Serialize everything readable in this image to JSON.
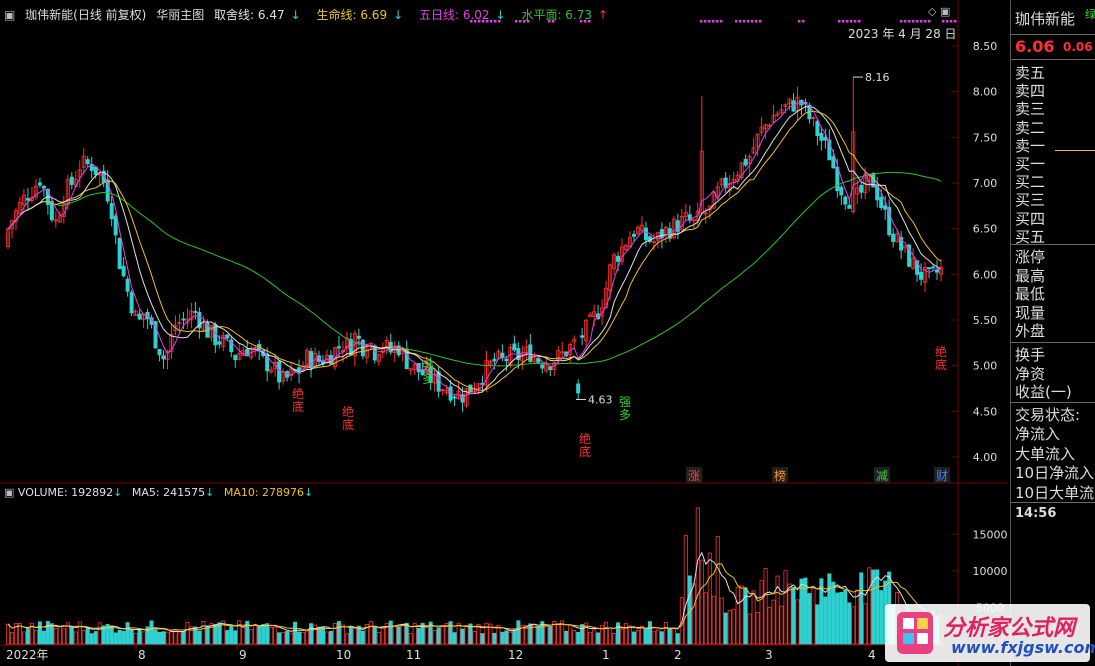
{
  "header": {
    "stock_name": "珈伟新能(日线 前复权)",
    "indicator": "华丽主图",
    "lines": [
      {
        "label": "取舍线: 6.47",
        "arrow": "↓",
        "color": "#e0e0e0"
      },
      {
        "label": "生命线: 6.69",
        "arrow": "↓",
        "color": "#f0c020"
      },
      {
        "label": "五日线: 6.02",
        "arrow": "↓",
        "color": "#e040e0"
      },
      {
        "label": "水平面: 6.73",
        "arrow": "↑",
        "color": "#30c030"
      }
    ],
    "date": "2023 年 4 月 28 日"
  },
  "price_axis": [
    "8.50",
    "8.00",
    "7.50",
    "7.00",
    "6.50",
    "6.00",
    "5.50",
    "5.00",
    "4.50",
    "4.00"
  ],
  "annotations": {
    "high": "8.16",
    "low": "4.63",
    "signals": [
      {
        "text": "绝底",
        "color": "#ff3030"
      },
      {
        "text": "绝底",
        "color": "#ff3030"
      },
      {
        "text": "强多",
        "color": "#30d030"
      },
      {
        "text": "绝底",
        "color": "#ff3030"
      },
      {
        "text": "强多",
        "color": "#30d030"
      },
      {
        "text": "绝底",
        "color": "#ff3030"
      }
    ],
    "tags": [
      {
        "text": "涨",
        "color": "#ff4040"
      },
      {
        "text": "榜",
        "color": "#ff9020"
      },
      {
        "text": "减",
        "color": "#30d030"
      },
      {
        "text": "财",
        "color": "#4080ff"
      }
    ]
  },
  "volume": {
    "items": [
      {
        "label": "VOLUME: 192892",
        "arrow": "↓",
        "color": "#e0e0e0"
      },
      {
        "label": "MA5: 241575",
        "arrow": "↓",
        "color": "#e0e0e0"
      },
      {
        "label": "MA10: 278976",
        "arrow": "↓",
        "color": "#f0c020"
      }
    ],
    "axis": [
      "15000",
      "10000",
      "5000"
    ]
  },
  "date_axis": [
    "2022年",
    "8",
    "9",
    "10",
    "11",
    "12",
    "1",
    "2",
    "3",
    "4"
  ],
  "side_panel": {
    "name": "珈伟新能",
    "price": "6.06",
    "change": "0.06",
    "green_mark": "绿",
    "book": [
      "卖五",
      "卖四",
      "卖三",
      "卖二",
      "卖一",
      "买一",
      "买二",
      "买三",
      "买四",
      "买五"
    ],
    "stats1": [
      "涨停",
      "最高",
      "最低",
      "现量",
      "外盘"
    ],
    "stats2": [
      "换手",
      "净资",
      "收益(一)"
    ],
    "stats3": [
      "交易状态:",
      "净流入",
      "大单流入",
      "10日净流入",
      "10日大单流"
    ],
    "time": "14:56"
  },
  "watermark": {
    "title": "分析家公式网",
    "url": "www.fxjgsw.com"
  },
  "colors": {
    "up": "#ff3030",
    "down": "#30d0d0",
    "ma_white": "#e0e0e0",
    "ma_yellow": "#f0c020",
    "ma_purple": "#e040e0",
    "ma_green": "#30c030"
  }
}
